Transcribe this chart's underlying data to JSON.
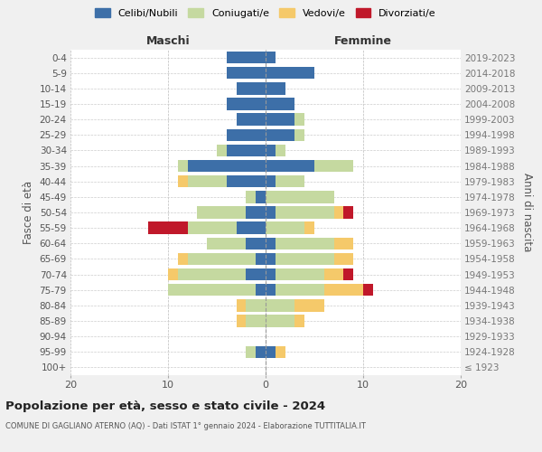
{
  "age_groups": [
    "100+",
    "95-99",
    "90-94",
    "85-89",
    "80-84",
    "75-79",
    "70-74",
    "65-69",
    "60-64",
    "55-59",
    "50-54",
    "45-49",
    "40-44",
    "35-39",
    "30-34",
    "25-29",
    "20-24",
    "15-19",
    "10-14",
    "5-9",
    "0-4"
  ],
  "birth_years": [
    "≤ 1923",
    "1924-1928",
    "1929-1933",
    "1934-1938",
    "1939-1943",
    "1944-1948",
    "1949-1953",
    "1954-1958",
    "1959-1963",
    "1964-1968",
    "1969-1973",
    "1974-1978",
    "1979-1983",
    "1984-1988",
    "1989-1993",
    "1994-1998",
    "1999-2003",
    "2004-2008",
    "2009-2013",
    "2014-2018",
    "2019-2023"
  ],
  "colors": {
    "celibe": "#3d6fa8",
    "coniugato": "#c5d9a0",
    "vedovo": "#f5c96a",
    "divorziato": "#c0182a"
  },
  "males": {
    "celibe": [
      0,
      1,
      0,
      0,
      0,
      1,
      2,
      1,
      2,
      3,
      2,
      1,
      4,
      8,
      4,
      4,
      3,
      4,
      3,
      4,
      4
    ],
    "coniugato": [
      0,
      1,
      0,
      2,
      2,
      9,
      7,
      7,
      4,
      5,
      5,
      1,
      4,
      1,
      1,
      0,
      0,
      0,
      0,
      0,
      0
    ],
    "vedovo": [
      0,
      0,
      0,
      1,
      1,
      0,
      1,
      1,
      0,
      0,
      0,
      0,
      1,
      0,
      0,
      0,
      0,
      0,
      0,
      0,
      0
    ],
    "divorziato": [
      0,
      0,
      0,
      0,
      0,
      0,
      0,
      0,
      0,
      4,
      0,
      0,
      0,
      0,
      0,
      0,
      0,
      0,
      0,
      0,
      0
    ]
  },
  "females": {
    "nubile": [
      0,
      1,
      0,
      0,
      0,
      1,
      1,
      1,
      1,
      0,
      1,
      0,
      1,
      5,
      1,
      3,
      3,
      3,
      2,
      5,
      1
    ],
    "coniugata": [
      0,
      0,
      0,
      3,
      3,
      5,
      5,
      6,
      6,
      4,
      6,
      7,
      3,
      4,
      1,
      1,
      1,
      0,
      0,
      0,
      0
    ],
    "vedova": [
      0,
      1,
      0,
      1,
      3,
      4,
      2,
      2,
      2,
      1,
      1,
      0,
      0,
      0,
      0,
      0,
      0,
      0,
      0,
      0,
      0
    ],
    "divorziata": [
      0,
      0,
      0,
      0,
      0,
      1,
      1,
      0,
      0,
      0,
      1,
      0,
      0,
      0,
      0,
      0,
      0,
      0,
      0,
      0,
      0
    ]
  },
  "xlim": [
    -20,
    20
  ],
  "xticks": [
    -20,
    -10,
    0,
    10,
    20
  ],
  "xticklabels": [
    "20",
    "10",
    "0",
    "10",
    "20"
  ],
  "title": "Popolazione per età, sesso e stato civile - 2024",
  "subtitle": "COMUNE DI GAGLIANO ATERNO (AQ) - Dati ISTAT 1° gennaio 2024 - Elaborazione TUTTITALIA.IT",
  "ylabel_left": "Fasce di età",
  "ylabel_right": "Anni di nascita",
  "label_maschi": "Maschi",
  "label_femmine": "Femmine",
  "legend_labels": [
    "Celibi/Nubili",
    "Coniugati/e",
    "Vedovi/e",
    "Divorziati/e"
  ],
  "bg_color": "#f0f0f0",
  "plot_bg": "#ffffff"
}
